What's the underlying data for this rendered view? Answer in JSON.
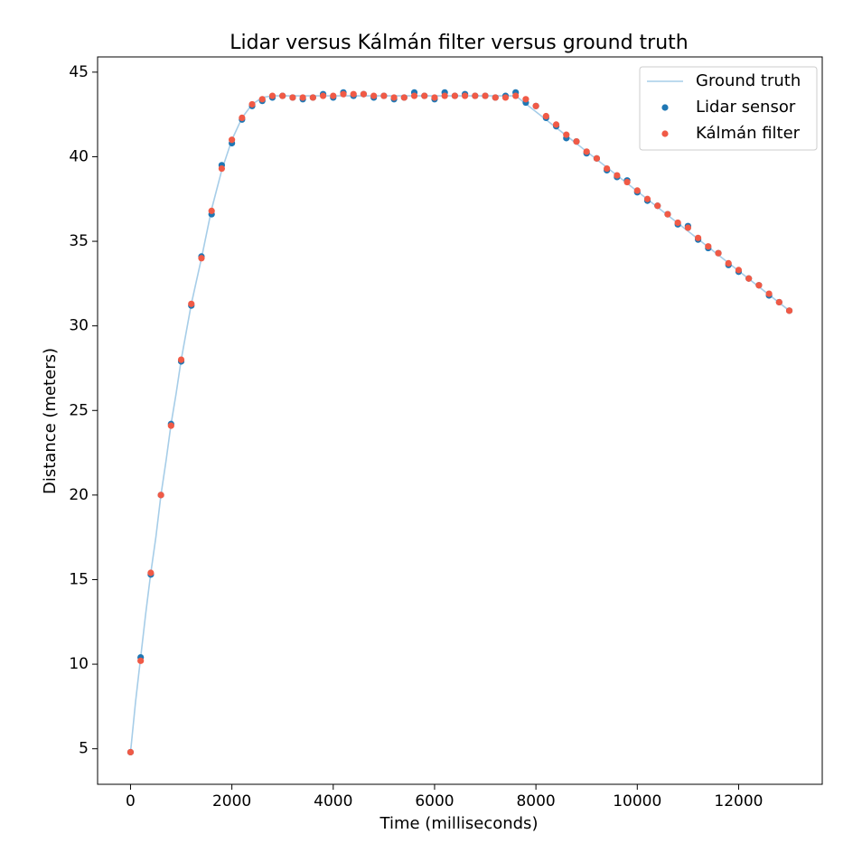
{
  "chart_data": {
    "type": "scatter",
    "title": "Lidar versus Kálmán filter versus ground truth",
    "x_label": "Time (milliseconds)",
    "y_label": "Distance (meters)",
    "xlim": [
      -650,
      13650
    ],
    "ylim": [
      2.9,
      45.9
    ],
    "xticks": [
      0,
      2000,
      4000,
      6000,
      8000,
      10000,
      12000
    ],
    "yticks": [
      5,
      10,
      15,
      20,
      25,
      30,
      35,
      40,
      45
    ],
    "legend": "upper right",
    "series": [
      {
        "name": "Ground truth",
        "type": "line",
        "color": "#a6cde8",
        "x": [
          0,
          100,
          200,
          300,
          400,
          500,
          600,
          700,
          800,
          900,
          1000,
          1200,
          1400,
          1600,
          1800,
          2000,
          2200,
          2400,
          2600,
          2800,
          7600,
          13000
        ],
        "values": [
          4.8,
          7.8,
          10.4,
          13,
          15.4,
          17.5,
          20,
          22,
          24.2,
          26,
          28,
          31.3,
          34,
          36.9,
          39.2,
          41,
          42.3,
          43.1,
          43.5,
          43.6,
          43.6,
          30.9
        ]
      },
      {
        "name": "Lidar sensor",
        "type": "scatter",
        "color": "#1f77b4",
        "x": [
          0,
          200,
          400,
          600,
          800,
          1000,
          1200,
          1400,
          1600,
          1800,
          2000,
          2200,
          2400,
          2600,
          2800,
          3000,
          3200,
          3400,
          3600,
          3800,
          4000,
          4200,
          4400,
          4600,
          4800,
          5000,
          5200,
          5400,
          5600,
          5800,
          6000,
          6200,
          6400,
          6600,
          6800,
          7000,
          7200,
          7400,
          7600,
          7800,
          8000,
          8200,
          8400,
          8600,
          8800,
          9000,
          9200,
          9400,
          9600,
          9800,
          10000,
          10200,
          10400,
          10600,
          10800,
          11000,
          11200,
          11400,
          11600,
          11800,
          12000,
          12200,
          12400,
          12600,
          12800,
          13000
        ],
        "values": [
          4.8,
          10.4,
          15.3,
          20.0,
          24.2,
          27.9,
          31.2,
          34.1,
          36.6,
          39.5,
          40.8,
          42.2,
          43.0,
          43.3,
          43.5,
          43.6,
          43.5,
          43.4,
          43.5,
          43.7,
          43.5,
          43.8,
          43.6,
          43.7,
          43.5,
          43.6,
          43.4,
          43.5,
          43.8,
          43.6,
          43.4,
          43.8,
          43.6,
          43.7,
          43.6,
          43.6,
          43.5,
          43.6,
          43.8,
          43.2,
          43.0,
          42.3,
          41.8,
          41.1,
          40.9,
          40.2,
          39.9,
          39.2,
          38.8,
          38.6,
          37.9,
          37.4,
          37.1,
          36.6,
          36.0,
          35.9,
          35.1,
          34.6,
          34.3,
          33.6,
          33.2,
          32.8,
          32.4,
          31.8,
          31.4,
          30.9
        ]
      },
      {
        "name": "Kálmán filter",
        "type": "scatter",
        "color": "#f05a46",
        "x": [
          0,
          200,
          400,
          600,
          800,
          1000,
          1200,
          1400,
          1600,
          1800,
          2000,
          2200,
          2400,
          2600,
          2800,
          3000,
          3200,
          3400,
          3600,
          3800,
          4000,
          4200,
          4400,
          4600,
          4800,
          5000,
          5200,
          5400,
          5600,
          5800,
          6000,
          6200,
          6400,
          6600,
          6800,
          7000,
          7200,
          7400,
          7600,
          7800,
          8000,
          8200,
          8400,
          8600,
          8800,
          9000,
          9200,
          9400,
          9600,
          9800,
          10000,
          10200,
          10400,
          10600,
          10800,
          11000,
          11200,
          11400,
          11600,
          11800,
          12000,
          12200,
          12400,
          12600,
          12800,
          13000
        ],
        "values": [
          4.8,
          10.2,
          15.4,
          20.0,
          24.1,
          28.0,
          31.3,
          34.0,
          36.8,
          39.3,
          41.0,
          42.3,
          43.1,
          43.4,
          43.6,
          43.6,
          43.5,
          43.5,
          43.5,
          43.6,
          43.6,
          43.7,
          43.7,
          43.7,
          43.6,
          43.6,
          43.5,
          43.5,
          43.6,
          43.6,
          43.5,
          43.6,
          43.6,
          43.6,
          43.6,
          43.6,
          43.5,
          43.5,
          43.6,
          43.4,
          43.0,
          42.4,
          41.9,
          41.3,
          40.9,
          40.3,
          39.9,
          39.3,
          38.9,
          38.5,
          38.0,
          37.5,
          37.1,
          36.6,
          36.1,
          35.8,
          35.2,
          34.7,
          34.3,
          33.7,
          33.3,
          32.8,
          32.4,
          31.9,
          31.4,
          30.9
        ]
      }
    ]
  }
}
